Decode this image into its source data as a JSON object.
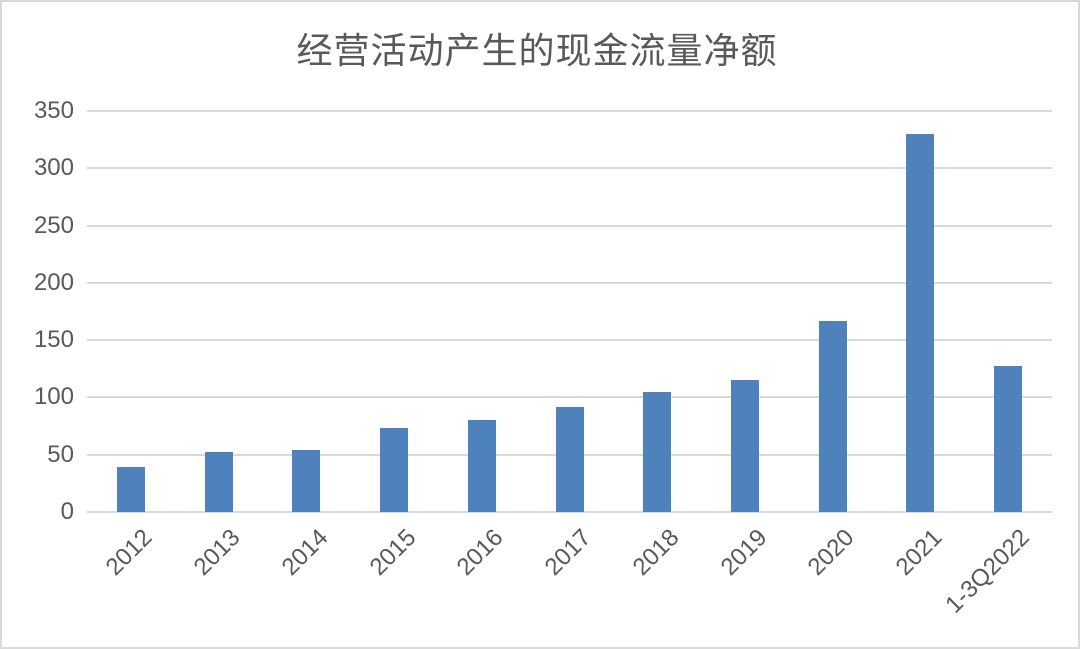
{
  "chart": {
    "title": "经营活动产生的现金流量净额",
    "bar_color": "#4f81bd",
    "gridline_color": "#d9d9d9",
    "text_color": "#595959",
    "border_color": "#d9d9d9"
  },
  "chart_data": {
    "type": "bar",
    "title": "经营活动产生的现金流量净额",
    "categories": [
      "2012",
      "2013",
      "2014",
      "2015",
      "2016",
      "2017",
      "2018",
      "2019",
      "2020",
      "2021",
      "1-3Q2022"
    ],
    "values": [
      39,
      52,
      54,
      73,
      80,
      92,
      105,
      115,
      167,
      330,
      127
    ],
    "series": [
      {
        "name": "经营活动产生的现金流量净额",
        "values": [
          39,
          52,
          54,
          73,
          80,
          92,
          105,
          115,
          167,
          330,
          127
        ]
      }
    ],
    "xlabel": "",
    "ylabel": "",
    "ylim": [
      0,
      350
    ],
    "yticks": [
      0,
      50,
      100,
      150,
      200,
      250,
      300,
      350
    ],
    "grid": true,
    "legend": false,
    "x_tick_rotation_deg": 45,
    "bar_color": "#4f81bd"
  }
}
